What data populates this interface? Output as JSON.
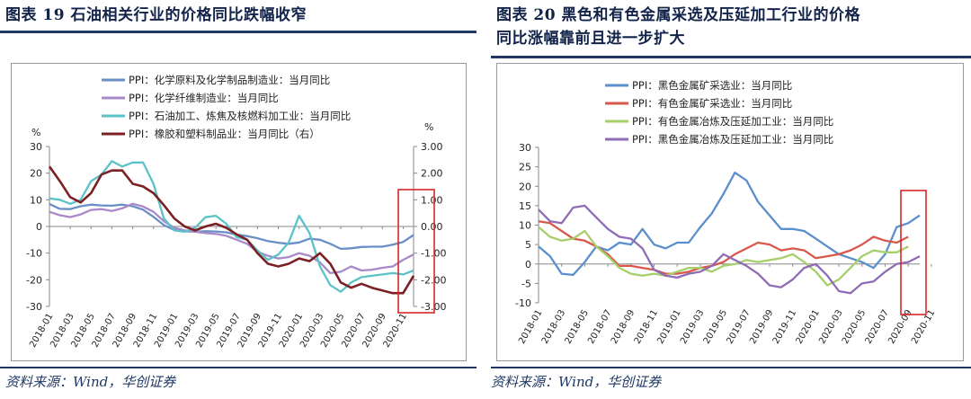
{
  "left": {
    "title": "图表 19   石油相关行业的价格同比跌幅收窄",
    "source": "资料来源：Wind，华创证券",
    "chart_data": {
      "type": "line",
      "y_left_label": "%",
      "y_right_label": "%",
      "ylim": [
        -30,
        30
      ],
      "ylim_right": [
        -3.0,
        3.0
      ],
      "yticks": [
        "30",
        "20",
        "10",
        "0",
        "-10",
        "-20",
        "-30"
      ],
      "yticks_right": [
        "3.00",
        "2.00",
        "1.00",
        "0.00",
        "-1.00",
        "-2.00",
        "-3.00"
      ],
      "x_tick_labels": [
        "2018-01",
        "2018-03",
        "2018-05",
        "2018-07",
        "2018-09",
        "2018-11",
        "2019-01",
        "2019-03",
        "2019-05",
        "2019-07",
        "2019-09",
        "2019-11",
        "2020-01",
        "2020-03",
        "2020-05",
        "2020-07",
        "2020-09",
        "2020-11"
      ],
      "series": [
        {
          "name": "PPI：化学原料及化学制品制造业：当月同比",
          "color": "#6a8fc6",
          "axis": "left",
          "values": [
            8.4,
            6.6,
            6.5,
            7.6,
            8.2,
            7.9,
            7.8,
            8.2,
            7.6,
            6.3,
            3.6,
            0.5,
            -1.3,
            -1.8,
            -2.0,
            -1.8,
            -1.9,
            -2.2,
            -3.1,
            -3.6,
            -4.4,
            -5.5,
            -6.1,
            -6.5,
            -6.0,
            -4.6,
            -5.0,
            -6.5,
            -8.4,
            -8.2,
            -7.7,
            -7.6,
            -7.6,
            -6.8,
            -5.8,
            -3.2
          ]
        },
        {
          "name": "PPI：化学纤维制造业：当月同比",
          "color": "#a989c9",
          "axis": "left",
          "values": [
            5.5,
            4.2,
            3.5,
            4.5,
            6.2,
            6.5,
            5.8,
            6.8,
            8.5,
            7.5,
            5.5,
            2.0,
            -0.5,
            -1.5,
            -2.0,
            -2.5,
            -2.8,
            -3.5,
            -5.0,
            -6.5,
            -9.5,
            -11.0,
            -12.0,
            -11.5,
            -10.0,
            -11.0,
            -13.5,
            -17.5,
            -17.0,
            -15.0,
            -16.5,
            -16.2,
            -15.5,
            -15.0,
            -12.5,
            -10.5
          ]
        },
        {
          "name": "PPI：石油加工、炼焦及核燃料加工业：当月同比",
          "color": "#5bc2c8",
          "axis": "left",
          "values": [
            10.5,
            10.0,
            8.5,
            10.0,
            17.0,
            19.5,
            24.5,
            22.5,
            24.0,
            24.0,
            16.0,
            3.0,
            -1.5,
            -2.0,
            -0.5,
            3.5,
            4.0,
            1.0,
            -4.0,
            -5.0,
            -9.0,
            -12.5,
            -10.5,
            -6.0,
            4.0,
            -2.5,
            -15.0,
            -22.0,
            -24.5,
            -21.0,
            -19.0,
            -18.5,
            -18.0,
            -17.5,
            -18.0,
            -16.5
          ]
        },
        {
          "name": "PPI：橡胶和塑料制品业：当月同比（右）",
          "color": "#7b2023",
          "axis": "right",
          "values": [
            2.25,
            1.7,
            1.1,
            0.9,
            1.25,
            1.95,
            2.1,
            2.1,
            1.6,
            1.5,
            1.25,
            0.8,
            0.3,
            0.0,
            -0.15,
            0.0,
            0.1,
            -0.05,
            -0.3,
            -0.5,
            -1.0,
            -1.4,
            -1.5,
            -1.4,
            -1.2,
            -1.3,
            -1.0,
            -1.4,
            -2.1,
            -2.3,
            -2.15,
            -2.3,
            -2.4,
            -2.5,
            -2.5,
            -1.85
          ]
        }
      ],
      "highlight": "last two months (red box)"
    }
  },
  "right": {
    "title_line1": "图表 20   黑色和有色金属采选及压延加工行业的价格",
    "title_line2": "同比涨幅靠前且进一步扩大",
    "source": "资料来源：Wind，华创证券",
    "chart_data": {
      "type": "line",
      "ylim": [
        -10,
        30
      ],
      "yticks": [
        "30",
        "25",
        "20",
        "15",
        "10",
        "5",
        "0",
        "-5",
        "-10"
      ],
      "x_tick_labels": [
        "2018-01",
        "2018-03",
        "2018-05",
        "2018-07",
        "2018-09",
        "2018-11",
        "2019-01",
        "2019-03",
        "2019-05",
        "2019-07",
        "2019-09",
        "2019-11",
        "2020-01",
        "2020-03",
        "2020-05",
        "2020-07",
        "2020-09",
        "2020-11"
      ],
      "series": [
        {
          "name": "PPI：黑色金属矿采选业：当月同比",
          "color": "#5b8fcb",
          "values": [
            4.5,
            2.0,
            -2.5,
            -2.8,
            0.5,
            4.5,
            3.5,
            5.5,
            5.0,
            9.0,
            5.0,
            4.0,
            5.5,
            5.5,
            9.5,
            13.0,
            18.0,
            23.5,
            21.5,
            16.0,
            12.5,
            9.0,
            9.0,
            8.5,
            6.5,
            4.5,
            2.5,
            1.5,
            0.5,
            -1.0,
            2.5,
            9.5,
            10.5,
            12.5
          ]
        },
        {
          "name": "PPI：有色金属矿采选业：当月同比",
          "color": "#d8584c",
          "values": [
            11.0,
            10.5,
            8.5,
            6.5,
            6.0,
            4.5,
            2.5,
            -0.5,
            -0.5,
            -1.0,
            -1.5,
            -2.5,
            -2.5,
            -2.0,
            -1.0,
            -0.5,
            0.5,
            2.5,
            4.0,
            5.5,
            5.0,
            3.5,
            4.0,
            3.5,
            1.5,
            2.0,
            2.5,
            3.5,
            5.0,
            7.0,
            6.0,
            5.5,
            7.0
          ]
        },
        {
          "name": "PPI：有色金属冶炼及压延加工业：当月同比",
          "color": "#a6cf6a",
          "values": [
            9.5,
            7.0,
            6.0,
            6.5,
            8.5,
            4.5,
            2.0,
            -1.0,
            -2.5,
            -3.0,
            -2.5,
            -3.0,
            -2.0,
            -1.0,
            -1.0,
            -2.0,
            -0.5,
            0.0,
            1.0,
            0.5,
            1.0,
            1.5,
            2.5,
            0.5,
            -2.0,
            -5.5,
            -4.0,
            -1.0,
            2.0,
            3.5,
            3.0,
            3.0,
            4.5
          ]
        },
        {
          "name": "PPI：黑色金属冶炼及压延加工业：当月同比",
          "color": "#8f6cb5",
          "values": [
            14.0,
            11.0,
            10.5,
            14.5,
            15.0,
            12.0,
            9.0,
            7.0,
            6.5,
            4.0,
            -1.5,
            -3.0,
            -3.5,
            -2.5,
            -2.0,
            -0.5,
            2.5,
            1.0,
            -0.5,
            -2.5,
            -5.5,
            -6.0,
            -4.0,
            -1.0,
            0.0,
            -3.0,
            -7.0,
            -7.5,
            -5.0,
            -4.5,
            -2.0,
            0.0,
            0.5,
            2.0
          ]
        }
      ],
      "highlight": "last two months (red box)"
    }
  }
}
